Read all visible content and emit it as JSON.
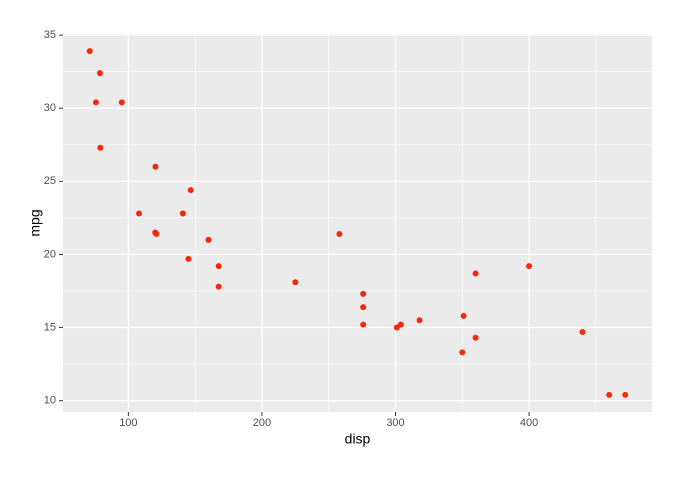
{
  "chart_data": {
    "type": "scatter",
    "x_label": "disp",
    "y_label": "mpg",
    "color": "#f2290f",
    "x": [
      160,
      160,
      108,
      258,
      360,
      225,
      360,
      146.7,
      140.8,
      167.6,
      167.6,
      275.8,
      275.8,
      275.8,
      472,
      460,
      440,
      78.7,
      75.7,
      71.1,
      120.1,
      318,
      304,
      350,
      400,
      79,
      120.3,
      95.1,
      351,
      145,
      301,
      121
    ],
    "values": [
      21.0,
      21.0,
      22.8,
      21.4,
      18.7,
      18.1,
      14.3,
      24.4,
      22.8,
      19.2,
      17.8,
      16.4,
      17.3,
      15.2,
      10.4,
      10.4,
      14.7,
      32.4,
      30.4,
      33.9,
      21.5,
      15.5,
      15.2,
      13.3,
      19.2,
      27.3,
      26.0,
      30.4,
      15.8,
      19.7,
      15.0,
      21.4
    ],
    "xlim": [
      51.055,
      492.045
    ],
    "ylim": [
      9.225,
      35.075
    ],
    "xticks": [
      100,
      200,
      300,
      400
    ],
    "yticks": [
      10,
      15,
      20,
      25,
      30,
      35
    ],
    "x_minor_breaks": [
      150,
      250,
      350,
      450
    ],
    "y_minor_breaks": [
      12.5,
      17.5,
      22.5,
      27.5,
      32.5
    ],
    "grid": true
  }
}
